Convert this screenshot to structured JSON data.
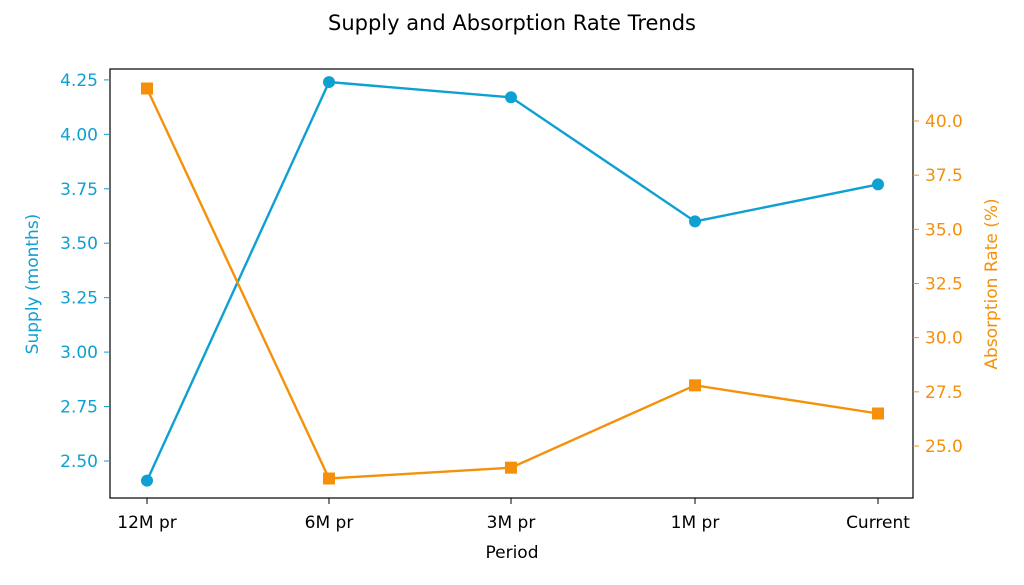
{
  "chart_data": {
    "type": "line",
    "title": "Supply and Absorption Rate Trends",
    "xlabel": "Period",
    "categories": [
      "12M pr",
      "6M pr",
      "3M pr",
      "1M pr",
      "Current"
    ],
    "series": [
      {
        "axis": "left",
        "ylabel": "Supply (months)",
        "color": "#0fa0d2",
        "marker": "circle",
        "values": [
          2.41,
          4.24,
          4.17,
          3.6,
          3.77
        ]
      },
      {
        "axis": "right",
        "ylabel": "Absorption Rate (%)",
        "color": "#f5900a",
        "marker": "square",
        "values": [
          41.5,
          23.5,
          24.0,
          27.8,
          26.5
        ]
      }
    ],
    "y_left": {
      "lim": [
        2.33,
        4.3
      ],
      "ticks": [
        "2.50",
        "2.75",
        "3.00",
        "3.25",
        "3.50",
        "3.75",
        "4.00",
        "4.25"
      ]
    },
    "y_right": {
      "lim": [
        22.6,
        42.4
      ],
      "ticks": [
        "25.0",
        "27.5",
        "30.0",
        "32.5",
        "35.0",
        "37.5",
        "40.0"
      ]
    },
    "grid": false,
    "legend": "none"
  }
}
